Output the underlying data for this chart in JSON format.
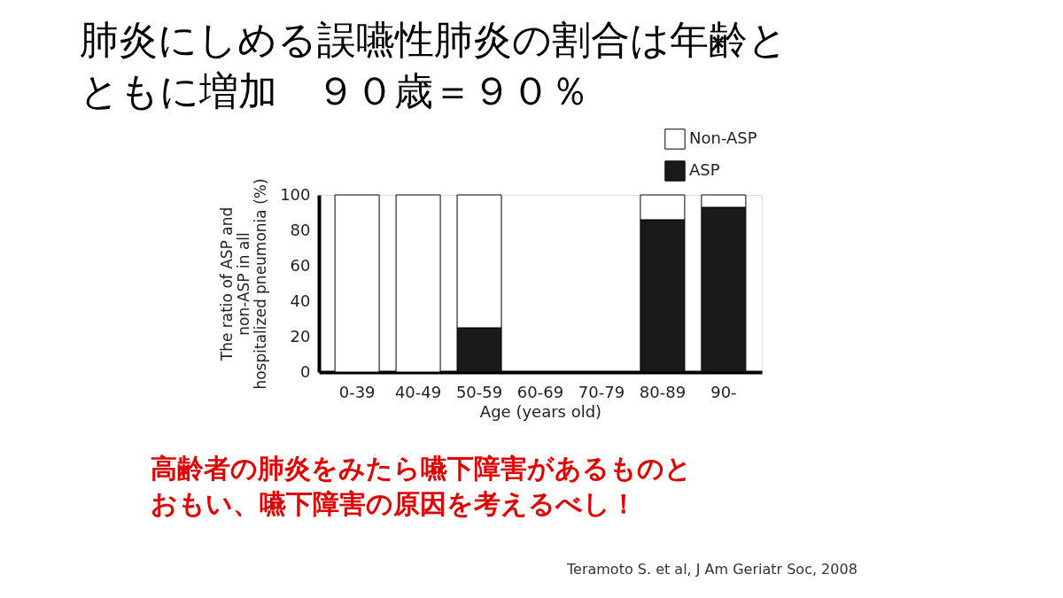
{
  "chart_data": {
    "type": "bar",
    "stacked": true,
    "title": "肺炎にしめる誤嚥性肺炎の割合は年齢とともに増加　９０歳＝９０％",
    "xlabel": "Age (years old)",
    "ylabel": "The ratio of ASP and\nnon-ASP in all\nhospitalized pneumonia (%)",
    "categories": [
      "0-39",
      "40-49",
      "50-59",
      "60-69",
      "70-79",
      "80-89",
      "90-"
    ],
    "series": [
      {
        "name": "ASP",
        "color": "#1a1a1a",
        "values": [
          0,
          0,
          25,
          null,
          null,
          86,
          93
        ]
      },
      {
        "name": "Non-ASP",
        "color": "#ffffff",
        "values": [
          100,
          100,
          75,
          null,
          null,
          14,
          7
        ]
      }
    ],
    "ylim": [
      0,
      100
    ],
    "yticks": [
      0,
      20,
      40,
      60,
      80,
      100
    ],
    "grid": false,
    "legend": "top right",
    "annotations": [
      "高齢者の肺炎をみたら嚥下障害があるものとおもい、嚥下障害の原因を考えるべし！",
      "Teramoto S. et al, J Am Geriatr Soc, 2008"
    ]
  }
}
